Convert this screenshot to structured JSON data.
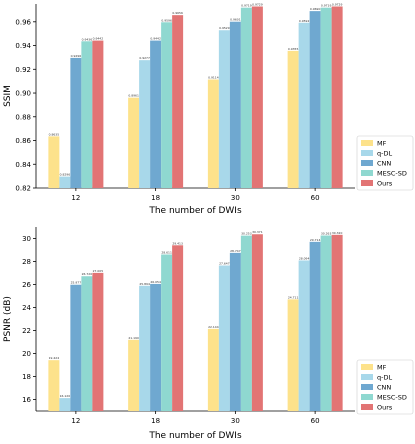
{
  "colors": {
    "MF": "#fde28b",
    "q-DL": "#a8d8ea",
    "CNN": "#6fa8d0",
    "MESC-SD": "#8fd8d0",
    "Ours": "#e27474"
  },
  "chart_data": [
    {
      "type": "bar",
      "categories": [
        "12",
        "18",
        "30",
        "60"
      ],
      "xlabel": "The number of DWIs",
      "ylabel": "SSIM",
      "ylim": [
        0.82,
        0.975
      ],
      "yticks": [
        "0.82",
        "0.84",
        "0.86",
        "0.88",
        "0.90",
        "0.92",
        "0.94",
        "0.96"
      ],
      "ytick_values": [
        0.82,
        0.84,
        0.86,
        0.88,
        0.9,
        0.92,
        0.94,
        0.96
      ],
      "legend_position": "bottom-right",
      "series": [
        {
          "name": "MF",
          "values": [
            0.8635,
            0.8961,
            0.9114,
            0.9355
          ],
          "labels": [
            "0.8635",
            "0.8961",
            "0.9114",
            "0.9355"
          ]
        },
        {
          "name": "q-DL",
          "values": [
            0.8296,
            0.9277,
            0.9529,
            0.9592
          ],
          "labels": [
            "0.8296",
            "0.9277",
            "0.9529",
            "0.9592"
          ]
        },
        {
          "name": "CNN",
          "values": [
            0.9296,
            0.9442,
            0.9601,
            0.969
          ],
          "labels": [
            "0.9296",
            "0.9442",
            "0.9601",
            "0.9690"
          ]
        },
        {
          "name": "MESC-SD",
          "values": [
            0.9436,
            0.9596,
            0.9719,
            0.9719
          ],
          "labels": [
            "0.9436",
            "0.9596",
            "0.9719",
            "0.9719"
          ]
        },
        {
          "name": "Ours",
          "values": [
            0.9442,
            0.9656,
            0.9729,
            0.9729
          ],
          "labels": [
            "0.9442",
            "0.9656",
            "0.9729",
            "0.9729"
          ]
        }
      ]
    },
    {
      "type": "bar",
      "categories": [
        "12",
        "18",
        "30",
        "60"
      ],
      "xlabel": "The number of DWIs",
      "ylabel": "PSNR (dB)",
      "ylim": [
        15,
        31
      ],
      "yticks": [
        "16",
        "18",
        "20",
        "22",
        "24",
        "26",
        "28",
        "30"
      ],
      "ytick_values": [
        16,
        18,
        20,
        22,
        24,
        26,
        28,
        30
      ],
      "legend_position": "bottom-right",
      "series": [
        {
          "name": "MF",
          "values": [
            19.42,
            21.19,
            22.14,
            24.71
          ],
          "labels": [
            "19.424",
            "21.190",
            "22.144",
            "24.711"
          ]
        },
        {
          "name": "q-DL",
          "values": [
            16.12,
            25.89,
            27.65,
            28.09
          ],
          "labels": [
            "16.120",
            "25.894",
            "27.647",
            "28.094"
          ]
        },
        {
          "name": "CNN",
          "values": [
            25.98,
            26.05,
            28.75,
            29.71
          ],
          "labels": [
            "25.977",
            "26.054",
            "28.747",
            "29.714"
          ]
        },
        {
          "name": "MESC-SD",
          "values": [
            26.72,
            28.61,
            30.25,
            30.26
          ],
          "labels": [
            "26.720",
            "28.611",
            "30.253",
            "30.263"
          ]
        },
        {
          "name": "Ours",
          "values": [
            27.01,
            29.41,
            30.37,
            30.32
          ],
          "labels": [
            "27.005",
            "29.413",
            "30.371",
            "30.320"
          ]
        }
      ]
    }
  ]
}
